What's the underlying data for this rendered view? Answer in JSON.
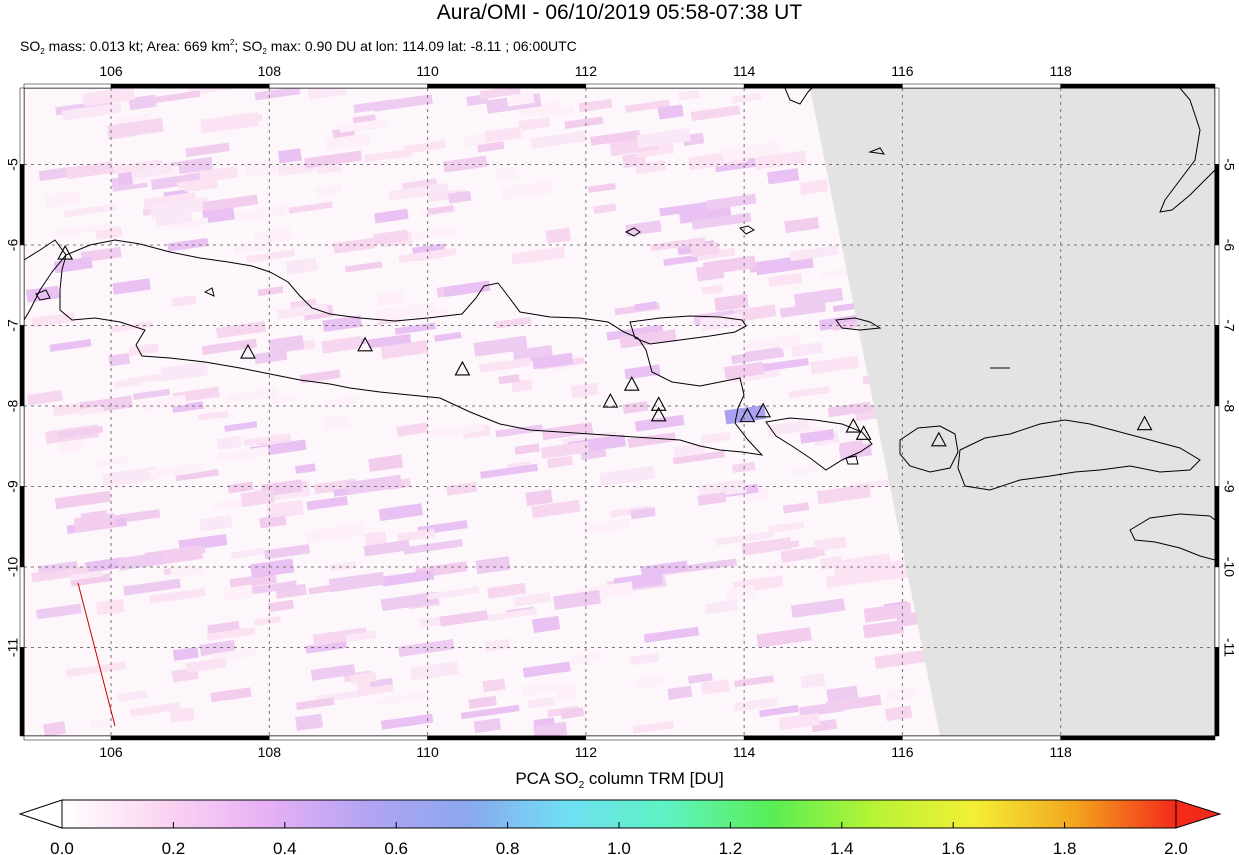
{
  "title": "Aura/OMI - 06/10/2019 05:58-07:38 UT",
  "subtitle": {
    "part1": "SO",
    "sub1": "2",
    "part2": " mass: 0.013 kt; Area: 669 km",
    "sup1": "2",
    "part3": "; SO",
    "sub2": "2",
    "part4": " max: 0.90 DU at lon: 114.09 lat: -8.11 ; 06:00UTC"
  },
  "map": {
    "lon_range": [
      104.9,
      119.95
    ],
    "lat_range": [
      -12.1,
      -4.05
    ],
    "lon_ticks": [
      "106",
      "108",
      "110",
      "112",
      "114",
      "116",
      "118"
    ],
    "lat_ticks": [
      "-5",
      "-6",
      "-7",
      "-8",
      "-9",
      "-10",
      "-11"
    ],
    "no_data_color": "#e3e3e3",
    "coastline_color": "#000000",
    "volcano_marker": "triangle-icon",
    "volcanoes": [
      {
        "lon": 105.42,
        "lat": -6.1
      },
      {
        "lon": 107.73,
        "lat": -7.33
      },
      {
        "lon": 109.21,
        "lat": -7.24
      },
      {
        "lon": 110.44,
        "lat": -7.54
      },
      {
        "lon": 112.31,
        "lat": -7.94
      },
      {
        "lon": 112.58,
        "lat": -7.73
      },
      {
        "lon": 112.92,
        "lat": -7.98
      },
      {
        "lon": 112.92,
        "lat": -8.11
      },
      {
        "lon": 114.04,
        "lat": -8.12
      },
      {
        "lon": 114.24,
        "lat": -8.06
      },
      {
        "lon": 115.38,
        "lat": -8.25
      },
      {
        "lon": 115.51,
        "lat": -8.34
      },
      {
        "lon": 116.46,
        "lat": -8.42
      },
      {
        "lon": 119.06,
        "lat": -8.22
      }
    ],
    "max_marker": {
      "lon": 114.09,
      "lat": -8.11,
      "value_du": 0.9
    },
    "orbit_track_color": "#cc0000"
  },
  "colorbar": {
    "title_part1": "PCA SO",
    "title_sub": "2",
    "title_part2": " column TRM [DU]",
    "ticks": [
      "0.0",
      "0.2",
      "0.4",
      "0.6",
      "0.8",
      "1.0",
      "1.2",
      "1.4",
      "1.6",
      "1.8",
      "2.0"
    ],
    "range": [
      0.0,
      2.0
    ],
    "stops": [
      "#ffffff",
      "#fbd5f2",
      "#e8b0f5",
      "#b4a4f3",
      "#8ba7f0",
      "#6fe0f3",
      "#5ef3c0",
      "#58ee55",
      "#b5f335",
      "#f3f035",
      "#f3a51e",
      "#f32a1a"
    ]
  }
}
